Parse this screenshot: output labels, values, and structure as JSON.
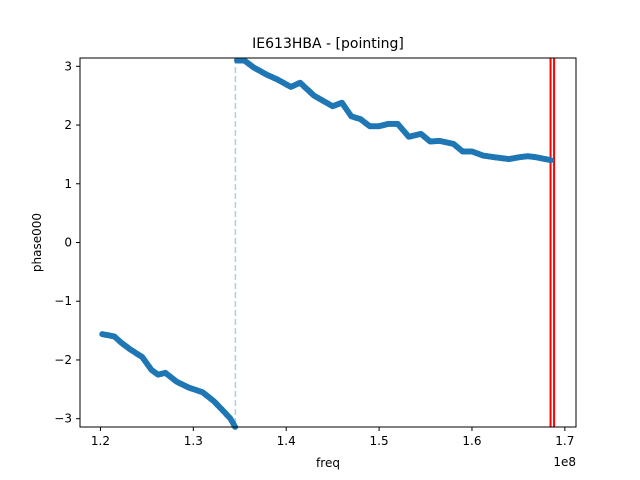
{
  "chart_data": {
    "type": "scatter",
    "title": "IE613HBA - [pointing]",
    "xlabel": "freq",
    "ylabel": "phase000",
    "x_offset_label": "1e8",
    "xlim": [
      1.178,
      1.712
    ],
    "ylim": [
      -3.1416,
      3.1416
    ],
    "x_ticks": [
      {
        "value": 1.2,
        "label": "1.2"
      },
      {
        "value": 1.3,
        "label": "1.3"
      },
      {
        "value": 1.4,
        "label": "1.4"
      },
      {
        "value": 1.5,
        "label": "1.5"
      },
      {
        "value": 1.6,
        "label": "1.6"
      },
      {
        "value": 1.7,
        "label": "1.7"
      }
    ],
    "y_ticks": [
      {
        "value": 3,
        "label": "3"
      },
      {
        "value": 2,
        "label": "2"
      },
      {
        "value": 1,
        "label": "1"
      },
      {
        "value": 0,
        "label": "0"
      },
      {
        "value": -1,
        "label": "−1"
      },
      {
        "value": -2,
        "label": "−2"
      },
      {
        "value": -3,
        "label": "−3"
      }
    ],
    "grid": false,
    "series": [
      {
        "color": "#1f77b4",
        "segments": [
          {
            "x": [
              1.202,
              1.215,
              1.222,
              1.232,
              1.245,
              1.255,
              1.262,
              1.27,
              1.282,
              1.295,
              1.31,
              1.322,
              1.333,
              1.34,
              1.345
            ],
            "y": [
              -1.56,
              -1.6,
              -1.7,
              -1.82,
              -1.95,
              -2.17,
              -2.25,
              -2.22,
              -2.37,
              -2.47,
              -2.55,
              -2.7,
              -2.88,
              -3.0,
              -3.14
            ]
          },
          {
            "x": [
              1.347,
              1.355,
              1.365,
              1.38,
              1.39,
              1.405,
              1.415,
              1.43,
              1.45,
              1.46,
              1.47,
              1.48,
              1.49,
              1.5,
              1.51,
              1.52,
              1.532,
              1.545,
              1.555,
              1.565,
              1.58,
              1.59,
              1.6,
              1.612,
              1.625,
              1.64,
              1.65,
              1.66,
              1.67,
              1.685
            ],
            "y": [
              3.1,
              3.1,
              2.98,
              2.85,
              2.78,
              2.65,
              2.72,
              2.5,
              2.32,
              2.38,
              2.15,
              2.1,
              1.98,
              1.98,
              2.02,
              2.02,
              1.8,
              1.85,
              1.72,
              1.73,
              1.68,
              1.55,
              1.55,
              1.48,
              1.45,
              1.42,
              1.45,
              1.47,
              1.45,
              1.4
            ]
          }
        ]
      }
    ],
    "vlines": [
      {
        "x": 1.3453,
        "color": "#aecde6",
        "style": "dashed"
      },
      {
        "x": 1.6846,
        "color": "#ff0000",
        "style": "solid"
      },
      {
        "x": 1.6884,
        "color": "#ff0000",
        "style": "solid"
      }
    ]
  }
}
